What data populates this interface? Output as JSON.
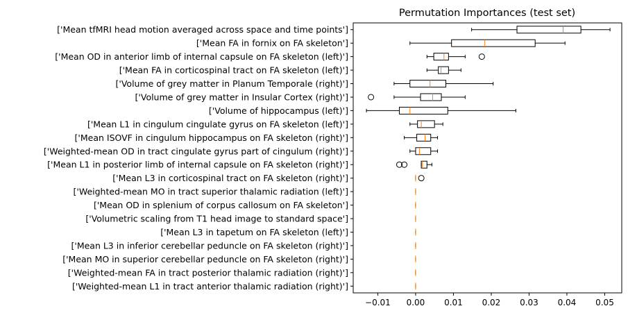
{
  "chart_data": {
    "type": "boxplot",
    "orientation": "horizontal",
    "title": "Permutation Importances (test set)",
    "xlabel": "",
    "ylabel": "",
    "xlim": [
      -0.0165,
      0.0545
    ],
    "xticks": [
      -0.01,
      0.0,
      0.01,
      0.02,
      0.03,
      0.04,
      0.05
    ],
    "xtick_labels": [
      "−0.01",
      "0.00",
      "0.01",
      "0.02",
      "0.03",
      "0.04",
      "0.05"
    ],
    "grid": false,
    "colors": {
      "box": "#000000",
      "median": "#ff7f0e",
      "flier": "#000000"
    },
    "categories": [
      "['Mean tfMRI head motion averaged across space and time points']",
      "['Mean FA in fornix on FA skeleton']",
      "['Mean OD in anterior limb of internal capsule on FA skeleton (left)']",
      "['Mean FA in corticospinal tract on FA skeleton (left)']",
      "['Volume of grey matter in Planum Temporale (right)']",
      "['Volume of grey matter in Insular Cortex (right)']",
      "['Volume of hippocampus (left)']",
      "['Mean L1 in cingulum cingulate gyrus on FA skeleton (left)']",
      "['Mean ISOVF in cingulum hippocampus on FA skeleton (right)']",
      "['Weighted-mean OD in tract cingulate gyrus part of cingulum (right)']",
      "['Mean L1 in posterior limb of internal capsule on FA skeleton (right)']",
      "['Mean L3 in corticospinal tract on FA skeleton (right)']",
      "['Weighted-mean MO in tract superior thalamic radiation (left)']",
      "['Mean OD in splenium of corpus callosum on FA skeleton']",
      "['Volumetric scaling from T1 head image to standard space']",
      "['Mean L3 in tapetum on FA skeleton (left)']",
      "['Mean L3 in inferior cerebellar peduncle on FA skeleton (right)']",
      "['Mean MO in superior cerebellar peduncle on FA skeleton (right)']",
      "['Weighted-mean FA in tract posterior thalamic radiation (right)']",
      "['Weighted-mean L1 in tract anterior thalamic radiation (right)']"
    ],
    "boxes": [
      {
        "whislo": 0.0148,
        "q1": 0.0268,
        "med": 0.039,
        "q3": 0.0437,
        "whishi": 0.0514,
        "fliers": []
      },
      {
        "whislo": -0.0015,
        "q1": 0.0095,
        "med": 0.0183,
        "q3": 0.0316,
        "whishi": 0.0395,
        "fliers": []
      },
      {
        "whislo": 0.003,
        "q1": 0.0048,
        "med": 0.0075,
        "q3": 0.0087,
        "whishi": 0.0131,
        "fliers": [
          0.0175
        ]
      },
      {
        "whislo": 0.003,
        "q1": 0.006,
        "med": 0.0067,
        "q3": 0.0087,
        "whishi": 0.012,
        "fliers": []
      },
      {
        "whislo": -0.0057,
        "q1": -0.0015,
        "med": 0.0038,
        "q3": 0.008,
        "whishi": 0.0205,
        "fliers": []
      },
      {
        "whislo": -0.0057,
        "q1": 0.0013,
        "med": 0.0045,
        "q3": 0.0068,
        "whishi": 0.0131,
        "fliers": [
          -0.0118
        ]
      },
      {
        "whislo": -0.013,
        "q1": -0.0043,
        "med": -0.0015,
        "q3": 0.0085,
        "whishi": 0.0265,
        "fliers": []
      },
      {
        "whislo": -0.0015,
        "q1": 0.0005,
        "med": 0.0015,
        "q3": 0.005,
        "whishi": 0.0072,
        "fliers": []
      },
      {
        "whislo": -0.003,
        "q1": 0.0003,
        "med": 0.0025,
        "q3": 0.004,
        "whishi": 0.0058,
        "fliers": []
      },
      {
        "whislo": -0.0015,
        "q1": 0.0,
        "med": 0.001,
        "q3": 0.004,
        "whishi": 0.0058,
        "fliers": []
      },
      {
        "whislo": 0.0015,
        "q1": 0.0015,
        "med": 0.0018,
        "q3": 0.003,
        "whishi": 0.0043,
        "fliers": [
          -0.0043,
          -0.003
        ]
      },
      {
        "whislo": 0.0,
        "q1": 0.0,
        "med": 0.0,
        "q3": 0.0,
        "whishi": 0.0,
        "fliers": [
          0.0015
        ]
      },
      {
        "whislo": 0.0,
        "q1": 0.0,
        "med": 0.0,
        "q3": 0.0,
        "whishi": 0.0,
        "fliers": []
      },
      {
        "whislo": 0.0,
        "q1": 0.0,
        "med": 0.0,
        "q3": 0.0,
        "whishi": 0.0,
        "fliers": []
      },
      {
        "whislo": 0.0,
        "q1": 0.0,
        "med": 0.0,
        "q3": 0.0,
        "whishi": 0.0,
        "fliers": []
      },
      {
        "whislo": 0.0,
        "q1": 0.0,
        "med": 0.0,
        "q3": 0.0,
        "whishi": 0.0,
        "fliers": []
      },
      {
        "whislo": 0.0,
        "q1": 0.0,
        "med": 0.0,
        "q3": 0.0,
        "whishi": 0.0,
        "fliers": []
      },
      {
        "whislo": 0.0,
        "q1": 0.0,
        "med": 0.0,
        "q3": 0.0,
        "whishi": 0.0,
        "fliers": []
      },
      {
        "whislo": 0.0,
        "q1": 0.0,
        "med": 0.0,
        "q3": 0.0,
        "whishi": 0.0,
        "fliers": []
      },
      {
        "whislo": 0.0,
        "q1": 0.0,
        "med": 0.0,
        "q3": 0.0,
        "whishi": 0.0,
        "fliers": []
      }
    ]
  }
}
